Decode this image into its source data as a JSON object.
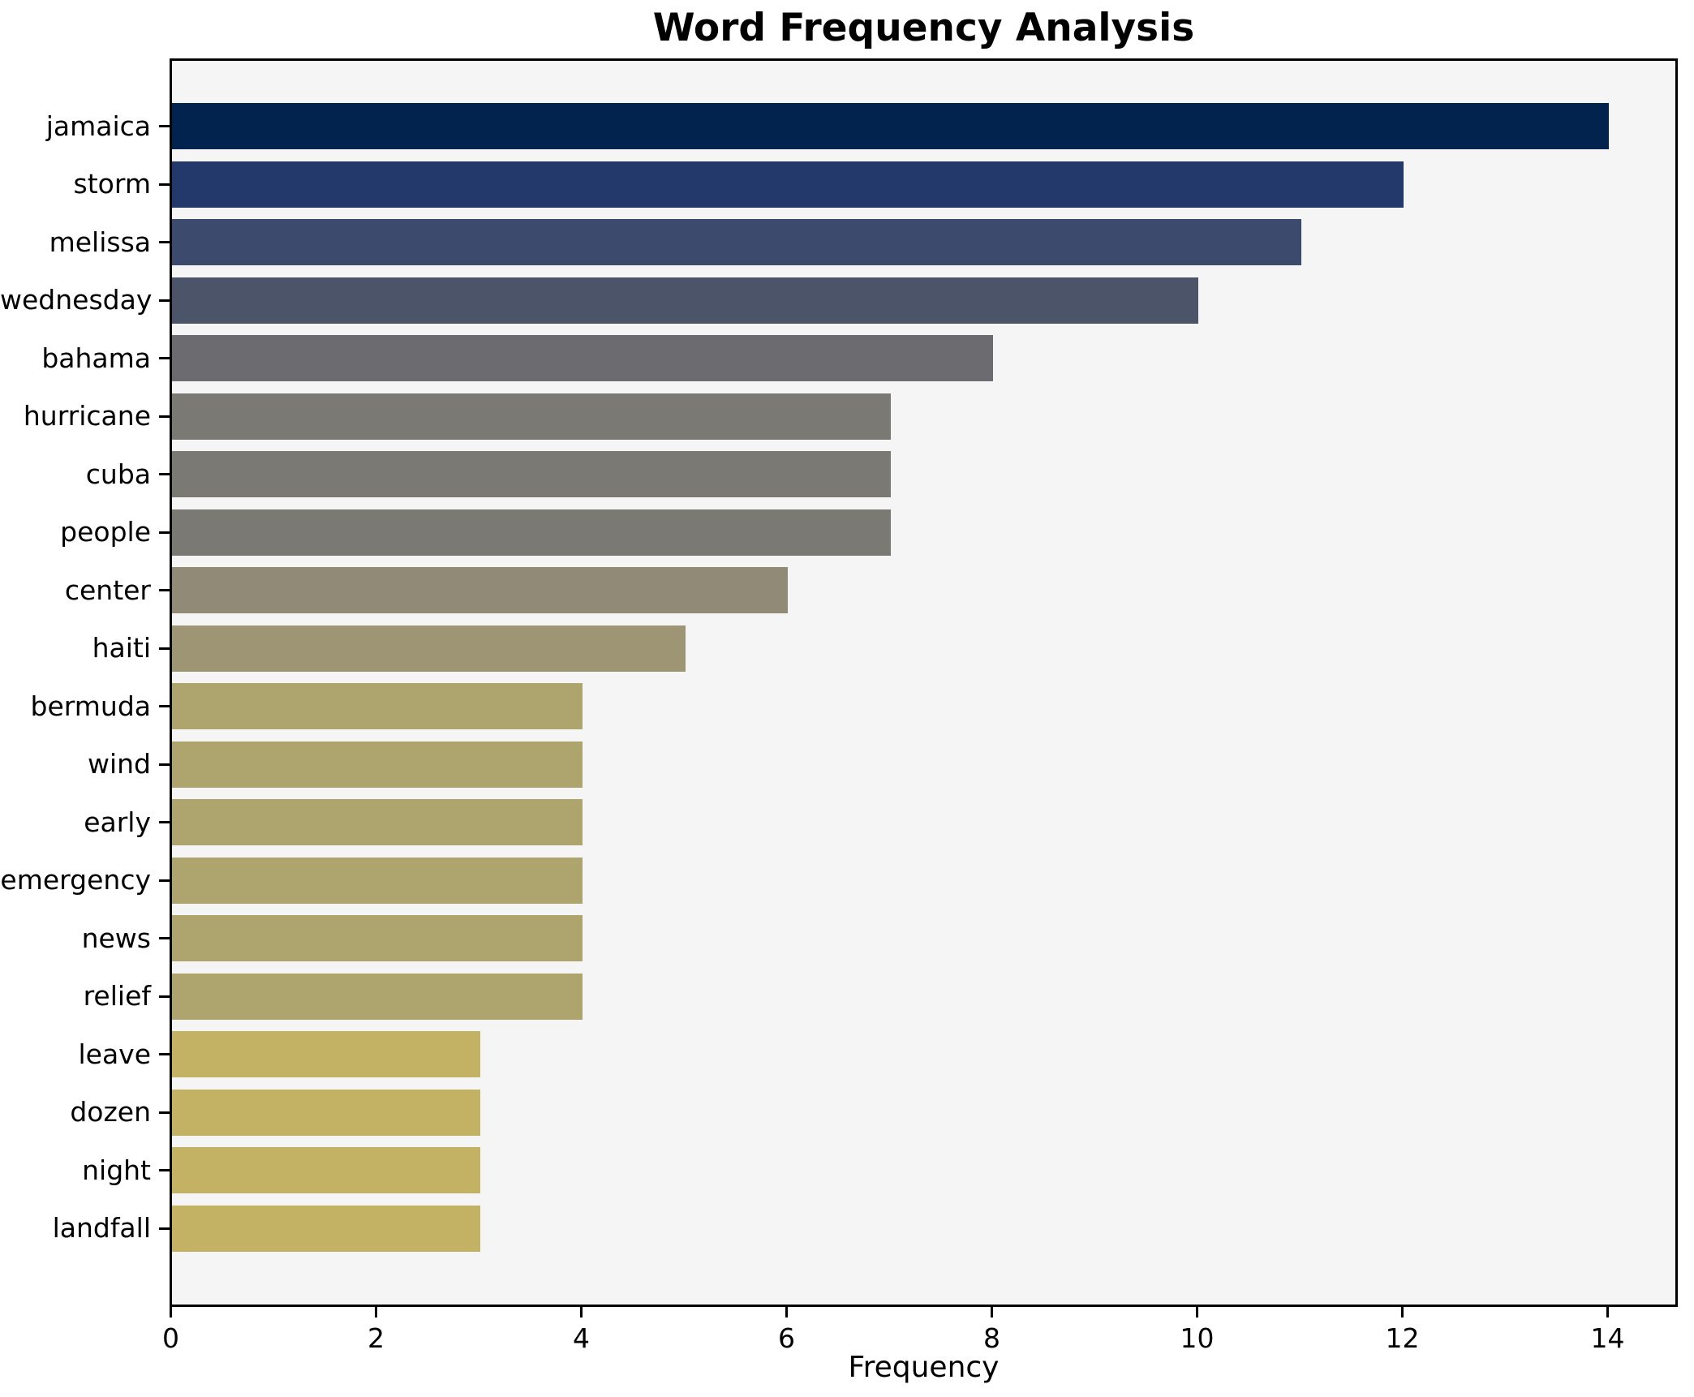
{
  "chart_data": {
    "type": "bar",
    "orientation": "horizontal",
    "title": "Word Frequency Analysis",
    "xlabel": "Frequency",
    "ylabel": "",
    "categories": [
      "jamaica",
      "storm",
      "melissa",
      "wednesday",
      "bahama",
      "hurricane",
      "cuba",
      "people",
      "center",
      "haiti",
      "bermuda",
      "wind",
      "early",
      "emergency",
      "news",
      "relief",
      "leave",
      "dozen",
      "night",
      "landfall"
    ],
    "values": [
      14,
      12,
      11,
      10,
      8,
      7,
      7,
      7,
      6,
      5,
      4,
      4,
      4,
      4,
      4,
      4,
      3,
      3,
      3,
      3
    ],
    "bar_colors": [
      "#02234d",
      "#24396b",
      "#3c4a6e",
      "#4c546a",
      "#6c6c70",
      "#7a7974",
      "#7a7974",
      "#7a7974",
      "#908a76",
      "#9d9573",
      "#aea46e",
      "#aea46e",
      "#aea46e",
      "#aea46e",
      "#aea46e",
      "#aea46e",
      "#c3b164",
      "#c3b164",
      "#c3b164",
      "#c3b164"
    ],
    "x_ticks": [
      0,
      2,
      4,
      6,
      8,
      10,
      12,
      14
    ],
    "xlim": [
      0,
      14.7
    ],
    "grid": false,
    "legend": null,
    "plot_background": "#f6f5f6",
    "figure_background": "#ffffff",
    "spine_color": "#000000",
    "colormap": "cividis-reversed-by-value"
  }
}
